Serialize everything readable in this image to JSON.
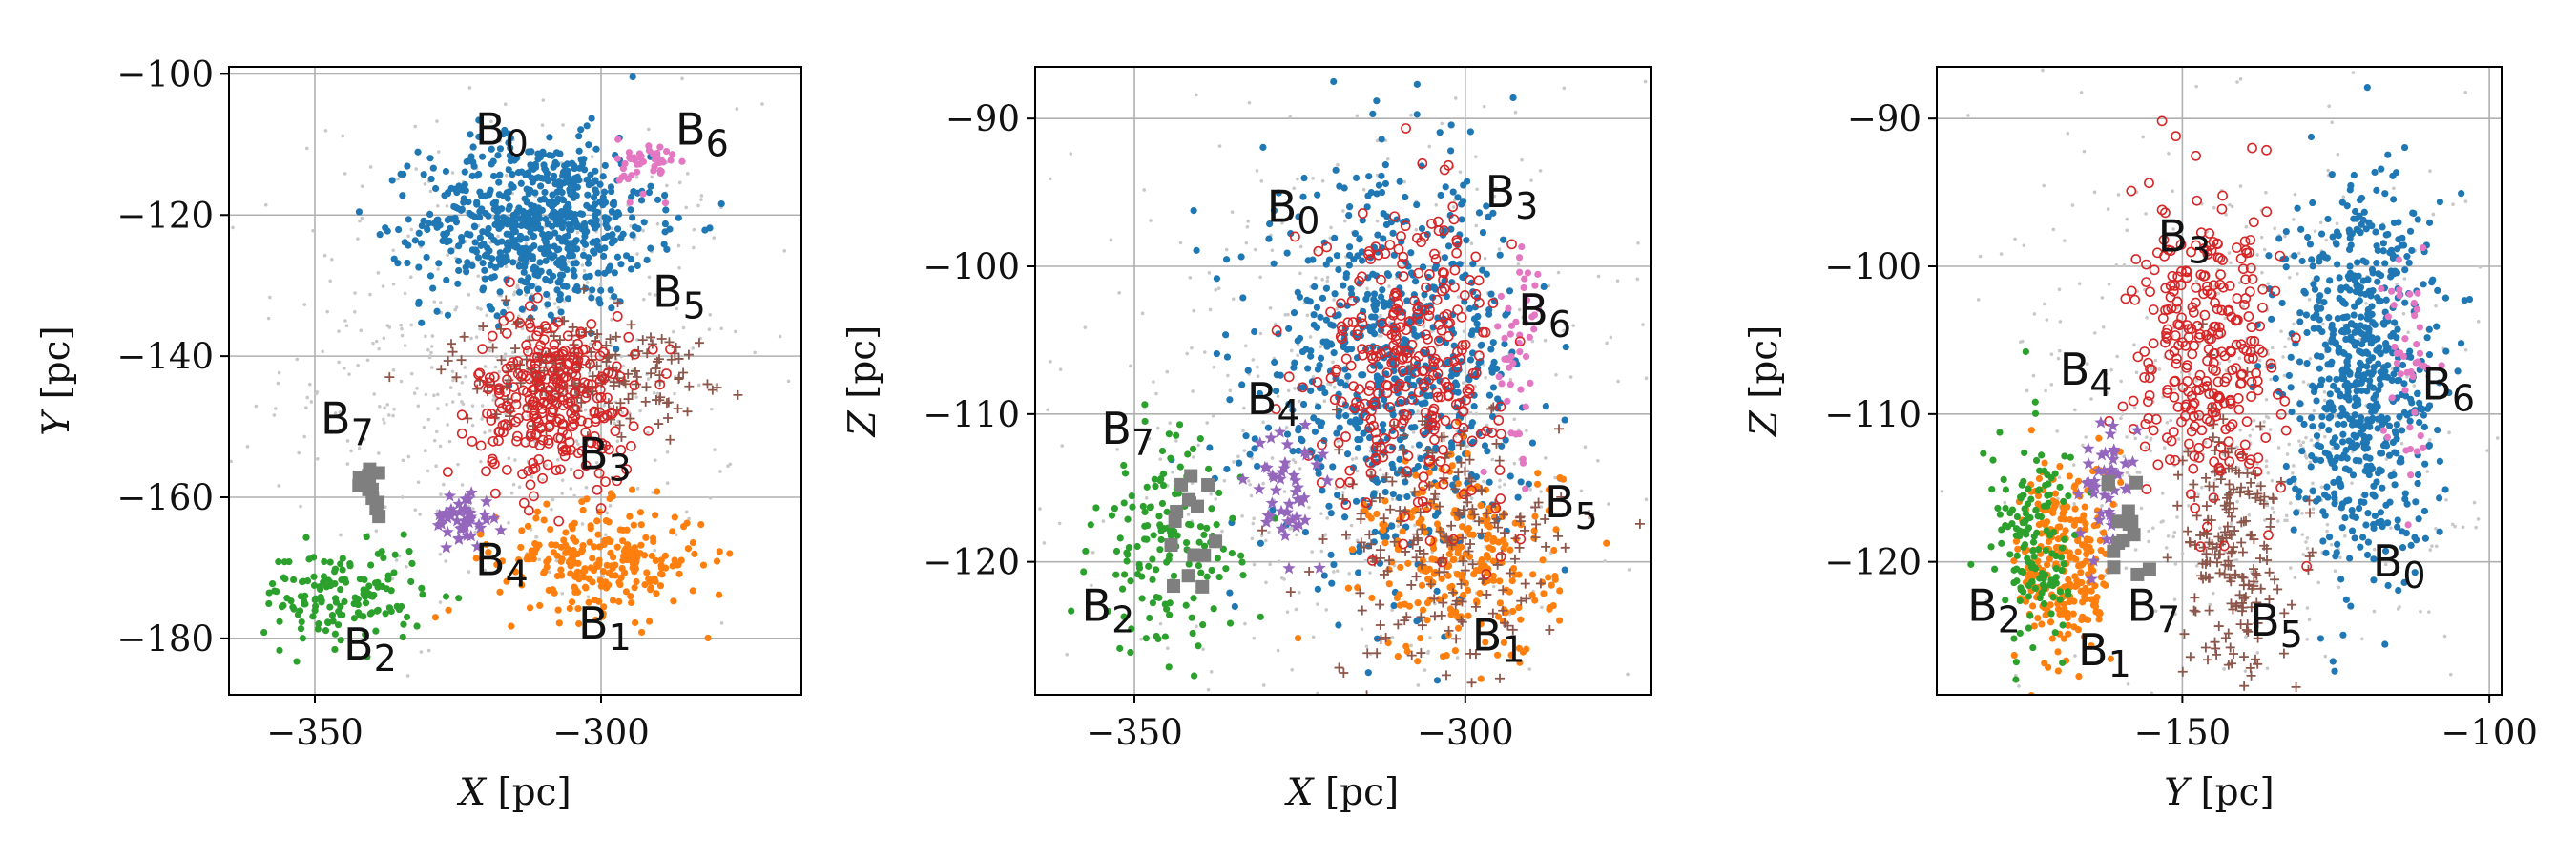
{
  "chart_data": [
    {
      "type": "scatter",
      "xlabel": {
        "var": "X",
        "unit": "[pc]"
      },
      "ylabel": {
        "var": "Y",
        "unit": "[pc]"
      },
      "xlim": [
        -365,
        -265
      ],
      "ylim": [
        -188,
        -99
      ],
      "xticks": [
        -350,
        -300
      ],
      "yticks": [
        -100,
        -120,
        -140,
        -160,
        -180
      ],
      "tick_labels_x": [
        "−350",
        "−300"
      ],
      "tick_labels_y": [
        "−100",
        "−120",
        "−140",
        "−160",
        "−180"
      ],
      "grid": true,
      "clusters": [
        {
          "name": "B0",
          "sub": "0",
          "center": [
            -311,
            -121
          ],
          "spread": [
            10,
            6
          ],
          "count": 700,
          "label_at": [
            -322,
            -110
          ]
        },
        {
          "name": "B1",
          "sub": "1",
          "center": [
            -300,
            -169
          ],
          "spread": [
            9,
            3.8
          ],
          "count": 260,
          "label_at": [
            -304,
            -180
          ]
        },
        {
          "name": "B2",
          "sub": "2",
          "center": [
            -345,
            -174
          ],
          "spread": [
            7,
            3.5
          ],
          "count": 150,
          "label_at": [
            -345,
            -183
          ]
        },
        {
          "name": "B3",
          "sub": "3",
          "center": [
            -308,
            -146
          ],
          "spread": [
            7,
            6
          ],
          "count": 300,
          "label_at": [
            -304,
            -156
          ]
        },
        {
          "name": "B4",
          "sub": "4",
          "center": [
            -324,
            -163
          ],
          "spread": [
            2.5,
            2
          ],
          "count": 45,
          "label_at": [
            -322,
            -171
          ]
        },
        {
          "name": "B5",
          "sub": "5",
          "center": [
            -304,
            -142
          ],
          "spread": [
            11,
            4
          ],
          "count": 200,
          "label_at": [
            -291,
            -133
          ]
        },
        {
          "name": "B6",
          "sub": "6",
          "center": [
            -292,
            -113
          ],
          "spread": [
            2.5,
            2
          ],
          "count": 45,
          "label_at": [
            -287,
            -110
          ]
        },
        {
          "name": "B7",
          "sub": "7",
          "center": [
            -341,
            -159
          ],
          "spread": [
            2,
            2
          ],
          "count": 14,
          "label_at": [
            -349,
            -151
          ]
        }
      ],
      "background": {
        "center": [
          -315,
          -140
        ],
        "spread": [
          20,
          18
        ],
        "count": 550
      }
    },
    {
      "type": "scatter",
      "xlabel": {
        "var": "X",
        "unit": "[pc]"
      },
      "ylabel": {
        "var": "Z",
        "unit": "[pc]"
      },
      "xlim": [
        -365,
        -272
      ],
      "ylim": [
        -129,
        -86.5
      ],
      "xticks": [
        -350,
        -300
      ],
      "yticks": [
        -90,
        -100,
        -110,
        -120
      ],
      "tick_labels_x": [
        "−350",
        "−300"
      ],
      "tick_labels_y": [
        "−90",
        "−100",
        "−110",
        "−120"
      ],
      "grid": true,
      "clusters": [
        {
          "name": "B0",
          "sub": "0",
          "center": [
            -311,
            -107
          ],
          "spread": [
            10,
            6.5
          ],
          "count": 700,
          "label_at": [
            -330,
            -97
          ]
        },
        {
          "name": "B1",
          "sub": "1",
          "center": [
            -300,
            -120
          ],
          "spread": [
            7,
            3.5
          ],
          "count": 260,
          "label_at": [
            -299,
            -126
          ]
        },
        {
          "name": "B2",
          "sub": "2",
          "center": [
            -345,
            -119
          ],
          "spread": [
            5.5,
            3.5
          ],
          "count": 150,
          "label_at": [
            -358,
            -124
          ]
        },
        {
          "name": "B3",
          "sub": "3",
          "center": [
            -308,
            -106
          ],
          "spread": [
            7,
            5
          ],
          "count": 300,
          "label_at": [
            -297,
            -96
          ]
        },
        {
          "name": "B4",
          "sub": "4",
          "center": [
            -327,
            -115
          ],
          "spread": [
            2.5,
            2
          ],
          "count": 45,
          "label_at": [
            -333,
            -110
          ]
        },
        {
          "name": "B5",
          "sub": "5",
          "center": [
            -303,
            -119
          ],
          "spread": [
            9,
            4.5
          ],
          "count": 200,
          "label_at": [
            -288,
            -117
          ]
        },
        {
          "name": "B6",
          "sub": "6",
          "center": [
            -292,
            -106
          ],
          "spread": [
            2,
            4
          ],
          "count": 45,
          "label_at": [
            -292,
            -104
          ]
        },
        {
          "name": "B7",
          "sub": "7",
          "center": [
            -341,
            -118
          ],
          "spread": [
            2,
            2.5
          ],
          "count": 14,
          "label_at": [
            -355,
            -112
          ]
        }
      ],
      "background": {
        "center": [
          -315,
          -110
        ],
        "spread": [
          22,
          10
        ],
        "count": 550
      }
    },
    {
      "type": "scatter",
      "xlabel": {
        "var": "Y",
        "unit": "[pc]"
      },
      "ylabel": {
        "var": "Z",
        "unit": "[pc]"
      },
      "xlim": [
        -190,
        -98
      ],
      "ylim": [
        -129,
        -86.5
      ],
      "xticks": [
        -150,
        -100
      ],
      "yticks": [
        -90,
        -100,
        -110,
        -120
      ],
      "tick_labels_x": [
        "−150",
        "−100"
      ],
      "tick_labels_y": [
        "−90",
        "−100",
        "−110",
        "−120"
      ],
      "grid": true,
      "clusters": [
        {
          "name": "B0",
          "sub": "0",
          "center": [
            -121,
            -107
          ],
          "spread": [
            6,
            6.5
          ],
          "count": 700,
          "label_at": [
            -119,
            -121
          ]
        },
        {
          "name": "B1",
          "sub": "1",
          "center": [
            -169,
            -120
          ],
          "spread": [
            3.8,
            3.5
          ],
          "count": 260,
          "label_at": [
            -167,
            -127
          ]
        },
        {
          "name": "B2",
          "sub": "2",
          "center": [
            -174,
            -119
          ],
          "spread": [
            3.5,
            3.5
          ],
          "count": 150,
          "label_at": [
            -185,
            -124
          ]
        },
        {
          "name": "B3",
          "sub": "3",
          "center": [
            -146,
            -106
          ],
          "spread": [
            6,
            5
          ],
          "count": 300,
          "label_at": [
            -154,
            -99
          ]
        },
        {
          "name": "B4",
          "sub": "4",
          "center": [
            -163,
            -115
          ],
          "spread": [
            2,
            2
          ],
          "count": 45,
          "label_at": [
            -170,
            -108
          ]
        },
        {
          "name": "B5",
          "sub": "5",
          "center": [
            -142,
            -119
          ],
          "spread": [
            4,
            4.5
          ],
          "count": 200,
          "label_at": [
            -139,
            -125
          ]
        },
        {
          "name": "B6",
          "sub": "6",
          "center": [
            -113,
            -106
          ],
          "spread": [
            2,
            4
          ],
          "count": 45,
          "label_at": [
            -111,
            -109
          ]
        },
        {
          "name": "B7",
          "sub": "7",
          "center": [
            -159,
            -118
          ],
          "spread": [
            2,
            2.5
          ],
          "count": 14,
          "label_at": [
            -159,
            -124
          ]
        }
      ],
      "background": {
        "center": [
          -140,
          -110
        ],
        "spread": [
          18,
          10
        ],
        "count": 550
      }
    }
  ],
  "series_styles": {
    "B0": {
      "color": "#1f77b4",
      "marker": "dot"
    },
    "B1": {
      "color": "#ff7f0e",
      "marker": "dot"
    },
    "B2": {
      "color": "#2ca02c",
      "marker": "dot"
    },
    "B3": {
      "color": "#d62728",
      "marker": "open-circle"
    },
    "B4": {
      "color": "#9467bd",
      "marker": "star"
    },
    "B5": {
      "color": "#8c564b",
      "marker": "plus"
    },
    "B6": {
      "color": "#e377c2",
      "marker": "dot"
    },
    "B7": {
      "color": "#7f7f7f",
      "marker": "square"
    },
    "background": {
      "color": "#c8c8c8",
      "marker": "dot"
    }
  }
}
